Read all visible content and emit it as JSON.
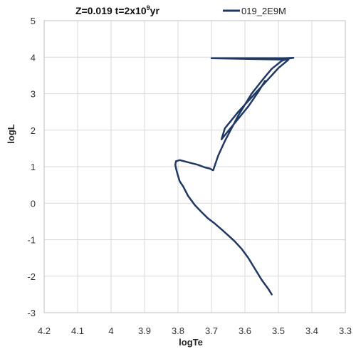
{
  "chart_data": {
    "type": "line",
    "title": {
      "prefix": "Z=0.019 t=2x10",
      "superscript": "9",
      "suffix": "yr"
    },
    "xlabel": "logTe",
    "ylabel": "logL",
    "xlim": [
      4.2,
      3.3
    ],
    "ylim": [
      -3,
      5
    ],
    "x_reversed": true,
    "x_ticks": [
      "4.2",
      "4.1",
      "4",
      "3.9",
      "3.8",
      "3.7",
      "3.6",
      "3.5",
      "3.4",
      "3.3"
    ],
    "y_ticks": [
      "5",
      "4",
      "3",
      "2",
      "1",
      "0",
      "-1",
      "-2",
      "-3"
    ],
    "grid": true,
    "legend_position": "top-right",
    "series": [
      {
        "name": "019_2E9M",
        "color": "#1f3864",
        "x": [
          3.52,
          3.53,
          3.55,
          3.57,
          3.59,
          3.61,
          3.63,
          3.65,
          3.67,
          3.69,
          3.71,
          3.73,
          3.75,
          3.77,
          3.784,
          3.795,
          3.8,
          3.805,
          3.808,
          3.806,
          3.795,
          3.77,
          3.74,
          3.72,
          3.705,
          3.695,
          3.68,
          3.66,
          3.64,
          3.62,
          3.6,
          3.58,
          3.55,
          3.52,
          3.49,
          3.47,
          3.455,
          3.48,
          3.55,
          3.62,
          3.7,
          3.47,
          3.5,
          3.54,
          3.58,
          3.62,
          3.66,
          3.67,
          3.63,
          3.59,
          3.56,
          3.54
        ],
        "y": [
          -2.5,
          -2.35,
          -2.1,
          -1.8,
          -1.5,
          -1.25,
          -1.05,
          -0.88,
          -0.72,
          -0.56,
          -0.42,
          -0.24,
          -0.05,
          0.2,
          0.45,
          0.6,
          0.75,
          0.92,
          1.05,
          1.15,
          1.18,
          1.12,
          1.05,
          0.98,
          0.95,
          0.9,
          1.3,
          1.7,
          2.05,
          2.4,
          2.7,
          3.0,
          3.35,
          3.68,
          3.9,
          3.96,
          3.98,
          3.97,
          3.97,
          3.97,
          3.97,
          3.93,
          3.7,
          3.3,
          2.9,
          2.5,
          2.05,
          1.75,
          2.2,
          2.65,
          3.05,
          3.35
        ]
      }
    ]
  }
}
